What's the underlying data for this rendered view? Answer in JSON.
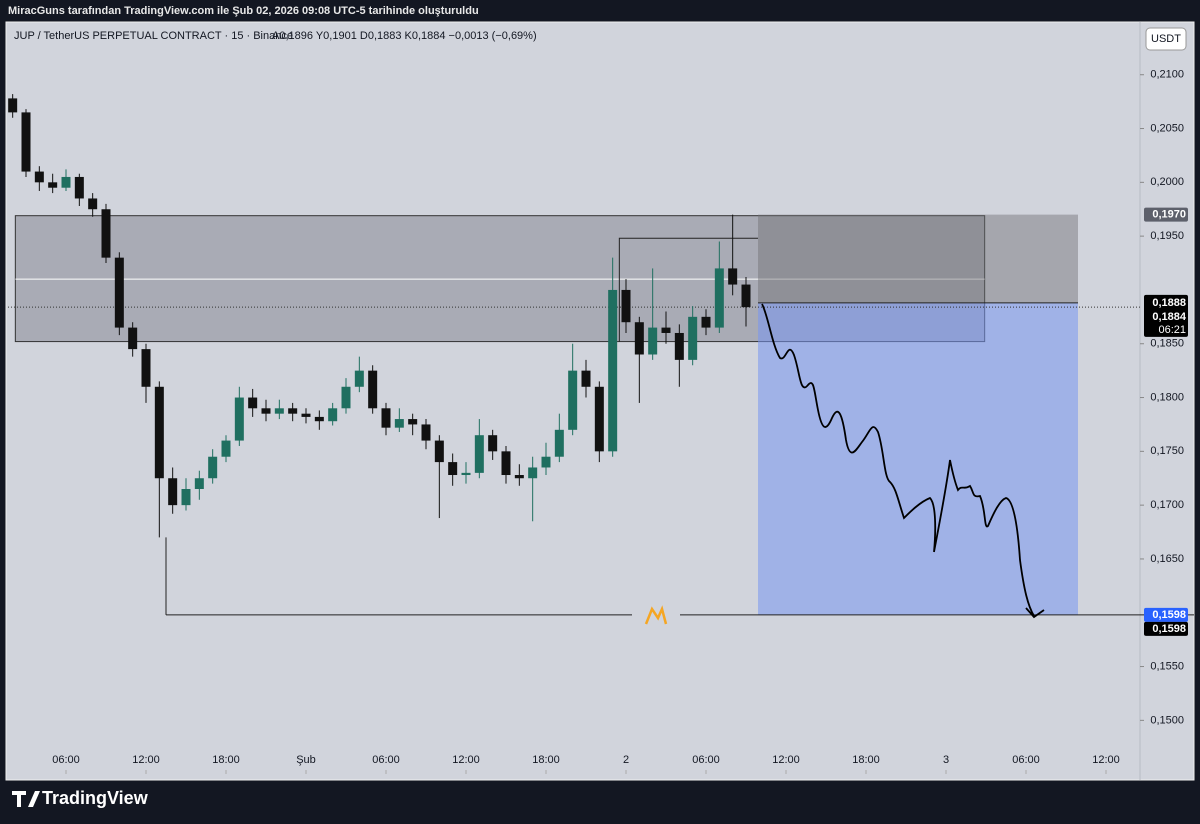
{
  "header": {
    "attribution": "MiracGuns tarafından TradingView.com ile Şub 02, 2026 09:08 UTC-5 tarihinde oluşturuldu"
  },
  "footer": {
    "brand": "TradingView"
  },
  "chart_data": {
    "type": "candlestick",
    "title": "JUP / TetherUS PERPETUAL CONTRACT · 15 · Binance",
    "subtitle": "A0,1896 Y0,1901 D0,1883 K0,1884 −0,0013 (−0,69%)",
    "currency": "USDT",
    "up_color": "#1f6f60",
    "down_color": "#111111",
    "xlim": [
      1.65,
      86.55
    ],
    "ylim": [
      0.1452,
      0.2149
    ],
    "xticks": [
      {
        "value": 6,
        "label": "06:00"
      },
      {
        "value": 12,
        "label": "12:00"
      },
      {
        "value": 18,
        "label": "18:00"
      },
      {
        "value": 24,
        "label": "Şub"
      },
      {
        "value": 30,
        "label": "06:00"
      },
      {
        "value": 36,
        "label": "12:00"
      },
      {
        "value": 42,
        "label": "18:00"
      },
      {
        "value": 48,
        "label": "2"
      },
      {
        "value": 54,
        "label": "06:00"
      },
      {
        "value": 60,
        "label": "12:00"
      },
      {
        "value": 66,
        "label": "18:00"
      },
      {
        "value": 72,
        "label": "3"
      },
      {
        "value": 78,
        "label": "06:00"
      },
      {
        "value": 84,
        "label": "12:00"
      }
    ],
    "yticks": [
      {
        "value": 0.21,
        "label": "0,2100"
      },
      {
        "value": 0.205,
        "label": "0,2050"
      },
      {
        "value": 0.2,
        "label": "0,2000"
      },
      {
        "value": 0.195,
        "label": "0,1950"
      },
      {
        "value": 0.185,
        "label": "0,1850"
      },
      {
        "value": 0.18,
        "label": "0,1800"
      },
      {
        "value": 0.175,
        "label": "0,1750"
      },
      {
        "value": 0.17,
        "label": "0,1700"
      },
      {
        "value": 0.165,
        "label": "0,1650"
      },
      {
        "value": 0.155,
        "label": "0,1550"
      },
      {
        "value": 0.15,
        "label": "0,1500"
      }
    ],
    "price_tags": [
      {
        "value": 0.197,
        "label": "0,1970"
      },
      {
        "value": 0.1888,
        "label": "0,1888"
      },
      {
        "value": 0.1884,
        "label": "0,1884"
      },
      {
        "value": 0.1598,
        "label": "0,1598"
      }
    ],
    "countdown": "06:21",
    "zone": {
      "x": [
        2.2,
        74.9
      ],
      "top": 0.1969,
      "bottom": 0.1852,
      "mid": 0.191
    },
    "range_box": {
      "x": [
        47.5,
        57.9
      ],
      "top": 0.1948
    },
    "position": {
      "x": [
        57.9,
        81.9
      ],
      "entry": 0.1888,
      "stop": 0.197,
      "target": 0.1598
    },
    "target_line": {
      "x": [
        13.5,
        95
      ]
    },
    "candles": [
      {
        "x": 2,
        "o": 0.2078,
        "h": 0.2082,
        "l": 0.206,
        "c": 0.2065
      },
      {
        "x": 3,
        "o": 0.2065,
        "h": 0.2068,
        "l": 0.2005,
        "c": 0.201
      },
      {
        "x": 4,
        "o": 0.201,
        "h": 0.2015,
        "l": 0.1992,
        "c": 0.2
      },
      {
        "x": 5,
        "o": 0.2,
        "h": 0.2008,
        "l": 0.199,
        "c": 0.1995
      },
      {
        "x": 6,
        "o": 0.1995,
        "h": 0.2012,
        "l": 0.1992,
        "c": 0.2005
      },
      {
        "x": 7,
        "o": 0.2005,
        "h": 0.2008,
        "l": 0.1978,
        "c": 0.1985
      },
      {
        "x": 8,
        "o": 0.1985,
        "h": 0.199,
        "l": 0.1968,
        "c": 0.1975
      },
      {
        "x": 9,
        "o": 0.1975,
        "h": 0.198,
        "l": 0.1925,
        "c": 0.193
      },
      {
        "x": 10,
        "o": 0.193,
        "h": 0.1935,
        "l": 0.1858,
        "c": 0.1865
      },
      {
        "x": 11,
        "o": 0.1865,
        "h": 0.187,
        "l": 0.1838,
        "c": 0.1845
      },
      {
        "x": 12,
        "o": 0.1845,
        "h": 0.185,
        "l": 0.1795,
        "c": 0.181
      },
      {
        "x": 13,
        "o": 0.181,
        "h": 0.1815,
        "l": 0.167,
        "c": 0.1725
      },
      {
        "x": 14,
        "o": 0.1725,
        "h": 0.1735,
        "l": 0.1692,
        "c": 0.17
      },
      {
        "x": 15,
        "o": 0.17,
        "h": 0.1725,
        "l": 0.1695,
        "c": 0.1715
      },
      {
        "x": 16,
        "o": 0.1715,
        "h": 0.1732,
        "l": 0.1705,
        "c": 0.1725
      },
      {
        "x": 17,
        "o": 0.1725,
        "h": 0.1752,
        "l": 0.172,
        "c": 0.1745
      },
      {
        "x": 18,
        "o": 0.1745,
        "h": 0.1765,
        "l": 0.174,
        "c": 0.176
      },
      {
        "x": 19,
        "o": 0.176,
        "h": 0.181,
        "l": 0.1755,
        "c": 0.18
      },
      {
        "x": 20,
        "o": 0.18,
        "h": 0.1808,
        "l": 0.1782,
        "c": 0.179
      },
      {
        "x": 21,
        "o": 0.179,
        "h": 0.1798,
        "l": 0.1778,
        "c": 0.1785
      },
      {
        "x": 22,
        "o": 0.1785,
        "h": 0.1798,
        "l": 0.178,
        "c": 0.179
      },
      {
        "x": 23,
        "o": 0.179,
        "h": 0.1795,
        "l": 0.1778,
        "c": 0.1785
      },
      {
        "x": 24,
        "o": 0.1785,
        "h": 0.179,
        "l": 0.1776,
        "c": 0.1782
      },
      {
        "x": 25,
        "o": 0.1782,
        "h": 0.1788,
        "l": 0.177,
        "c": 0.1778
      },
      {
        "x": 26,
        "o": 0.1778,
        "h": 0.1795,
        "l": 0.1774,
        "c": 0.179
      },
      {
        "x": 27,
        "o": 0.179,
        "h": 0.1818,
        "l": 0.1785,
        "c": 0.181
      },
      {
        "x": 28,
        "o": 0.181,
        "h": 0.1838,
        "l": 0.1805,
        "c": 0.1825
      },
      {
        "x": 29,
        "o": 0.1825,
        "h": 0.183,
        "l": 0.1785,
        "c": 0.179
      },
      {
        "x": 30,
        "o": 0.179,
        "h": 0.1795,
        "l": 0.1765,
        "c": 0.1772
      },
      {
        "x": 31,
        "o": 0.1772,
        "h": 0.179,
        "l": 0.1768,
        "c": 0.178
      },
      {
        "x": 32,
        "o": 0.178,
        "h": 0.1785,
        "l": 0.1765,
        "c": 0.1775
      },
      {
        "x": 33,
        "o": 0.1775,
        "h": 0.178,
        "l": 0.1752,
        "c": 0.176
      },
      {
        "x": 34,
        "o": 0.176,
        "h": 0.1765,
        "l": 0.1688,
        "c": 0.174
      },
      {
        "x": 35,
        "o": 0.174,
        "h": 0.1748,
        "l": 0.1718,
        "c": 0.1728
      },
      {
        "x": 36,
        "o": 0.1728,
        "h": 0.174,
        "l": 0.172,
        "c": 0.173
      },
      {
        "x": 37,
        "o": 0.173,
        "h": 0.178,
        "l": 0.1725,
        "c": 0.1765
      },
      {
        "x": 38,
        "o": 0.1765,
        "h": 0.177,
        "l": 0.1742,
        "c": 0.175
      },
      {
        "x": 39,
        "o": 0.175,
        "h": 0.1755,
        "l": 0.172,
        "c": 0.1728
      },
      {
        "x": 40,
        "o": 0.1728,
        "h": 0.1738,
        "l": 0.1718,
        "c": 0.1725
      },
      {
        "x": 41,
        "o": 0.1725,
        "h": 0.1745,
        "l": 0.1685,
        "c": 0.1735
      },
      {
        "x": 42,
        "o": 0.1735,
        "h": 0.1758,
        "l": 0.1728,
        "c": 0.1745
      },
      {
        "x": 43,
        "o": 0.1745,
        "h": 0.1785,
        "l": 0.174,
        "c": 0.177
      },
      {
        "x": 44,
        "o": 0.177,
        "h": 0.185,
        "l": 0.1765,
        "c": 0.1825
      },
      {
        "x": 45,
        "o": 0.1825,
        "h": 0.1835,
        "l": 0.18,
        "c": 0.181
      },
      {
        "x": 46,
        "o": 0.181,
        "h": 0.1815,
        "l": 0.174,
        "c": 0.175
      },
      {
        "x": 47,
        "o": 0.175,
        "h": 0.193,
        "l": 0.1745,
        "c": 0.19
      },
      {
        "x": 48,
        "o": 0.19,
        "h": 0.191,
        "l": 0.186,
        "c": 0.187
      },
      {
        "x": 49,
        "o": 0.187,
        "h": 0.1875,
        "l": 0.1795,
        "c": 0.184
      },
      {
        "x": 50,
        "o": 0.184,
        "h": 0.192,
        "l": 0.1835,
        "c": 0.1865
      },
      {
        "x": 51,
        "o": 0.1865,
        "h": 0.188,
        "l": 0.185,
        "c": 0.186
      },
      {
        "x": 52,
        "o": 0.186,
        "h": 0.1868,
        "l": 0.181,
        "c": 0.1835
      },
      {
        "x": 53,
        "o": 0.1835,
        "h": 0.1885,
        "l": 0.183,
        "c": 0.1875
      },
      {
        "x": 54,
        "o": 0.1875,
        "h": 0.1882,
        "l": 0.1858,
        "c": 0.1865
      },
      {
        "x": 55,
        "o": 0.1865,
        "h": 0.1945,
        "l": 0.186,
        "c": 0.192
      },
      {
        "x": 56,
        "o": 0.192,
        "h": 0.197,
        "l": 0.1895,
        "c": 0.1905
      },
      {
        "x": 57,
        "o": 0.1905,
        "h": 0.1912,
        "l": 0.1866,
        "c": 0.1884
      }
    ]
  }
}
